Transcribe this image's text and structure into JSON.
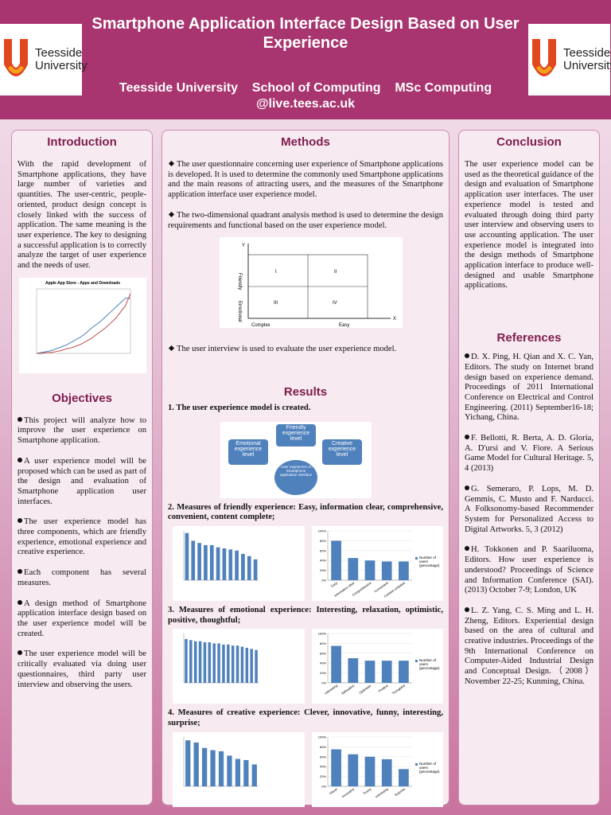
{
  "header": {
    "title": "Smartphone Application Interface Design Based on User Experience",
    "affiliation": "Teesside University    School of Computing    MSc Computing",
    "email": "@live.tees.ac.uk",
    "logo_text": "Teesside University"
  },
  "introduction": {
    "heading": "Introduction",
    "text": "With the rapid development of Smartphone applications, they have large number of varieties and quantities. The user-centric, people-oriented, product design concept is closely linked with the success of application. The same meaning is the user experience. The key to designing a successful application is to correctly analyze the target of user experience and the needs of user.",
    "chart": {
      "type": "line",
      "title": "Apple App Store - Apps and Downloads",
      "ylim": [
        0,
        70
      ],
      "series": [
        {
          "color": "#4a7ebb",
          "values": [
            0,
            1,
            2,
            3,
            5,
            7,
            9,
            12,
            15,
            18,
            22,
            27,
            31,
            35,
            40,
            45,
            50,
            55,
            60,
            60
          ]
        },
        {
          "color": "#be4b48",
          "values": [
            0,
            0,
            1,
            1,
            2,
            3,
            5,
            6,
            8,
            10,
            13,
            16,
            20,
            24,
            28,
            33,
            38,
            45,
            52,
            65
          ]
        }
      ]
    }
  },
  "objectives": {
    "heading": "Objectives",
    "items": [
      "This project will analyze how to improve the user experience on Smartphone application.",
      "A user experience model will be proposed which can be used as part of the design and evaluation of Smartphone application user interfaces.",
      "The user experience model has three components, which are friendly experience, emotional experience and creative experience.",
      "Each component has several measures.",
      "A design method of Smartphone application interface design based on the user experience model will be created.",
      "The user experience model will be critically evaluated via doing user questionnaires, third party user interview and observing the users."
    ]
  },
  "methods": {
    "heading": "Methods",
    "items": [
      "The user questionnaire concerning user experience of Smartphone applications is developed. It is used to determine the commonly used Smartphone applications and the main reasons of attracting users, and the measures of the Smartphone application interface user experience model.",
      "The two-dimensional quadrant analysis method is used to determine the design requirements and functional based on the user experience model.",
      "The user interview is used to evaluate the user experience model."
    ],
    "quadrant": {
      "y_axis": "Y",
      "x_axis": "X",
      "y_top": "Friendly",
      "y_bottom": "Emotional",
      "x_left": "Complex",
      "x_right": "Easy",
      "quadrants": [
        "I",
        "II",
        "III",
        "IV"
      ]
    }
  },
  "results": {
    "heading": "Results",
    "items": [
      {
        "text": "1.  The user experience model is created.",
        "model": {
          "top": "Friendly experience level",
          "left": "Emotional experience level",
          "right": "Creative experience level",
          "center": "User experience of Smartphone application interface"
        }
      },
      {
        "text": "2.  Measures of friendly experience: Easy, information clear, comprehensive, convenient, content complete;",
        "charts": [
          {
            "type": "bar",
            "color": "#4f81bd",
            "ylim": [
              0,
              4.5
            ],
            "values": [
              4.3,
              3.6,
              3.4,
              3.2,
              3.2,
              3.0,
              2.9,
              2.8,
              2.7,
              2.4,
              2.2,
              1.9
            ]
          },
          {
            "type": "bar",
            "color": "#4f81bd",
            "ylim": [
              0,
              100
            ],
            "yticks": [
              {
                "value": 0,
                "label": "0%"
              },
              {
                "value": 20,
                "label": "20%"
              },
              {
                "value": 40,
                "label": "40%"
              },
              {
                "value": 60,
                "label": "60%"
              },
              {
                "value": 80,
                "label": "80%"
              },
              {
                "value": 100,
                "label": "100%"
              }
            ],
            "categories": [
              "Easy",
              "Information clear",
              "Comprehensive",
              "Convenient",
              "Content complete"
            ],
            "values": [
              80,
              45,
              40,
              38,
              38
            ],
            "legend": "Number of users (percentage)"
          }
        ]
      },
      {
        "text": "3.  Measures of emotional experience: Interesting, relaxation, optimistic, positive, thoughtful;",
        "charts": [
          {
            "type": "bar",
            "color": "#4f81bd",
            "ylim": [
              0,
              4.5
            ],
            "values": [
              4.0,
              3.9,
              3.8,
              3.8,
              3.7,
              3.7,
              3.6,
              3.6,
              3.5,
              3.5,
              3.4,
              3.4,
              3.3,
              3.2,
              3.1,
              3.0
            ]
          },
          {
            "type": "bar",
            "color": "#4f81bd",
            "ylim": [
              0,
              100
            ],
            "yticks": [
              {
                "value": 0,
                "label": "0%"
              },
              {
                "value": 20,
                "label": "20%"
              },
              {
                "value": 40,
                "label": "40%"
              },
              {
                "value": 60,
                "label": "60%"
              },
              {
                "value": 80,
                "label": "80%"
              },
              {
                "value": 100,
                "label": "100%"
              }
            ],
            "categories": [
              "Interesting",
              "Relaxation",
              "Optimistic",
              "Positive",
              "Thoughtful"
            ],
            "values": [
              75,
              50,
              45,
              45,
              45
            ],
            "legend": "Number of users (percentage)"
          }
        ]
      },
      {
        "text": "4.  Measures of creative experience: Clever, innovative, funny, interesting, surprise;",
        "charts": [
          {
            "type": "bar",
            "color": "#4f81bd",
            "ylim": [
              0,
              4.5
            ],
            "values": [
              4.2,
              4.0,
              3.5,
              3.3,
              3.2,
              2.8,
              2.5,
              2.4,
              2.0
            ]
          },
          {
            "type": "bar",
            "color": "#4f81bd",
            "ylim": [
              0,
              100
            ],
            "yticks": [
              {
                "value": 0,
                "label": "0%"
              },
              {
                "value": 20,
                "label": "20%"
              },
              {
                "value": 40,
                "label": "40%"
              },
              {
                "value": 60,
                "label": "60%"
              },
              {
                "value": 80,
                "label": "80%"
              },
              {
                "value": 100,
                "label": "100%"
              }
            ],
            "categories": [
              "Clever",
              "Innovative",
              "Funny",
              "Interesting",
              "Surprise"
            ],
            "values": [
              75,
              65,
              60,
              55,
              35
            ],
            "legend": "Number of users (percentage)"
          }
        ]
      }
    ]
  },
  "conclusion": {
    "heading": "Conclusion",
    "text": "The user experience model can be used as the theoretical guidance of the design and evaluation of Smartphone application user interfaces. The user experience model is tested and evaluated through doing third party user interview and observing users to use accounting application. The user experience model is integrated into the design methods of Smartphone application interface to produce well-designed and usable Smartphone applications."
  },
  "references": {
    "heading": "References",
    "items": [
      "D. X. Ping, H. Qian and X. C. Yan, Editors. The study on Internet brand design based on experience demand. Proceedings of 2011 International Conference on Electrical and Control Engineering. (2011) September16-18; Yichang, China.",
      "F. Bellotti, R. Berta, A. D. Gloria, A. D'ursi and V. Fiore. A Serious Game Model for Cultural Heritage. 5, 4 (2013)",
      "G. Semeraro, P. Lops, M. D. Gemmis, C. Musto and F. Narducci. A Folksonomy-based Recommender System for Personalized Access to Digital Artworks. 5, 3 (2012)",
      "H. Tokkonen and P. Saariluoma, Editors. How user experience is understood? Proceedings of Science and Information Conference (SAI). (2013) October 7-9; London, UK",
      "L. Z. Yang, C. S. Ming and L. H. Zheng, Editors. Experiential design based on the area of cultural and creative industries. Proceedings of the 9th International Conference on Computer-Aided Industrial Design and Conceptual Design.（2008）November 22-25; Kunming, China."
    ]
  }
}
